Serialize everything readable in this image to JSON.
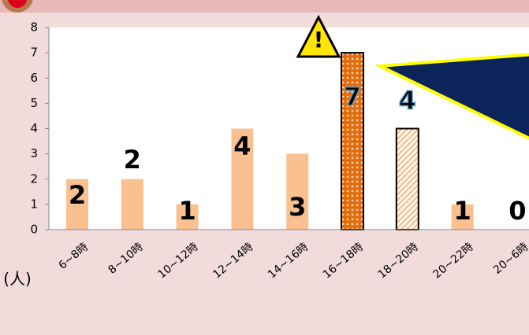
{
  "chart_data": {
    "type": "bar",
    "y_label": "(人)",
    "categories": [
      "6~8時",
      "8~10時",
      "10~12時",
      "12~14時",
      "14~16時",
      "16~18時",
      "18~20時",
      "20~22時",
      "20~6時"
    ],
    "values": [
      2,
      2,
      1,
      4,
      3,
      7,
      4,
      1,
      0
    ],
    "colors": [
      "#fac090",
      "#fac090",
      "#fac090",
      "#fac090",
      "#fac090",
      "#e46c0a",
      "#fbd5b5",
      "#fac090",
      "#fac090"
    ],
    "ylim": [
      0,
      8
    ],
    "yticks": [
      0,
      1,
      2,
      3,
      4,
      5,
      6,
      7,
      8
    ]
  }
}
